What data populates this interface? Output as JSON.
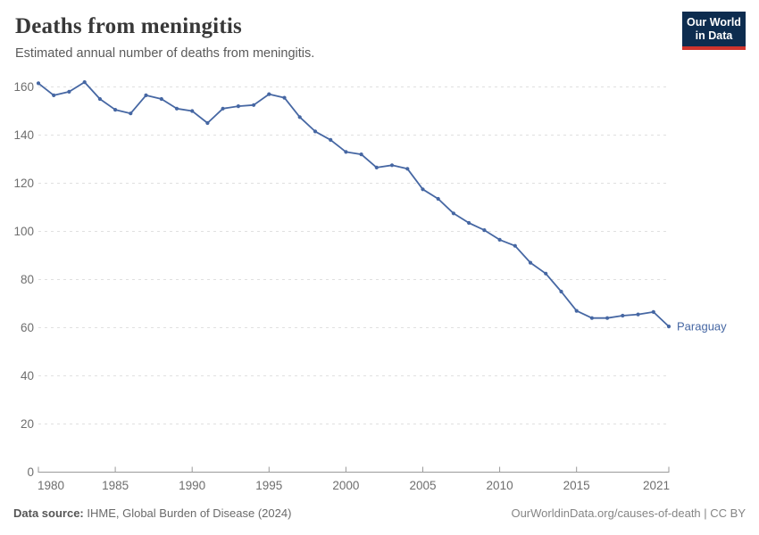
{
  "header": {
    "title": "Deaths from meningitis",
    "subtitle": "Estimated annual number of deaths from meningitis.",
    "logo": {
      "line1": "Our World",
      "line2": "in Data"
    }
  },
  "chart_data": {
    "type": "line",
    "title": "Deaths from meningitis",
    "xlabel": "",
    "ylabel": "",
    "x": [
      1980,
      1981,
      1982,
      1983,
      1984,
      1985,
      1986,
      1987,
      1988,
      1989,
      1990,
      1991,
      1992,
      1993,
      1994,
      1995,
      1996,
      1997,
      1998,
      1999,
      2000,
      2001,
      2002,
      2003,
      2004,
      2005,
      2006,
      2007,
      2008,
      2009,
      2010,
      2011,
      2012,
      2013,
      2014,
      2015,
      2016,
      2017,
      2018,
      2019,
      2020,
      2021
    ],
    "series": [
      {
        "name": "Paraguay",
        "color": "#4667a3",
        "values": [
          161.5,
          156.5,
          158,
          162,
          155,
          150.5,
          149,
          156.5,
          155,
          151,
          150,
          145,
          151,
          152,
          152.5,
          157,
          155.5,
          147.5,
          141.5,
          138,
          133,
          132,
          126.5,
          127.5,
          126,
          117.5,
          113.5,
          107.5,
          103.5,
          100.5,
          96.5,
          94,
          87,
          82.5,
          75,
          67,
          64,
          64,
          65,
          65.5,
          66.5,
          60.5
        ]
      }
    ],
    "x_ticks": [
      1980,
      1985,
      1990,
      1995,
      2000,
      2005,
      2010,
      2015,
      2021
    ],
    "y_ticks": [
      0,
      20,
      40,
      60,
      80,
      100,
      120,
      140,
      160
    ],
    "xlim": [
      1980,
      2021
    ],
    "ylim": [
      0,
      165
    ],
    "grid": "horizontal-dashed",
    "legend_position": "end-of-line-label",
    "end_label": "Paraguay"
  },
  "footer": {
    "source_label": "Data source:",
    "source_value": "IHME, Global Burden of Disease (2024)",
    "credit": "OurWorldinData.org/causes-of-death | CC BY"
  },
  "colors": {
    "line": "#4667a3",
    "title_text": "#383838",
    "subtitle_text": "#5a5a5a",
    "axis_text": "#6e6e6e",
    "gridline": "#e0e0e0",
    "axis_line": "#9a9a9a",
    "logo_bg": "#0d2c4f",
    "logo_accent": "#cf342d"
  }
}
